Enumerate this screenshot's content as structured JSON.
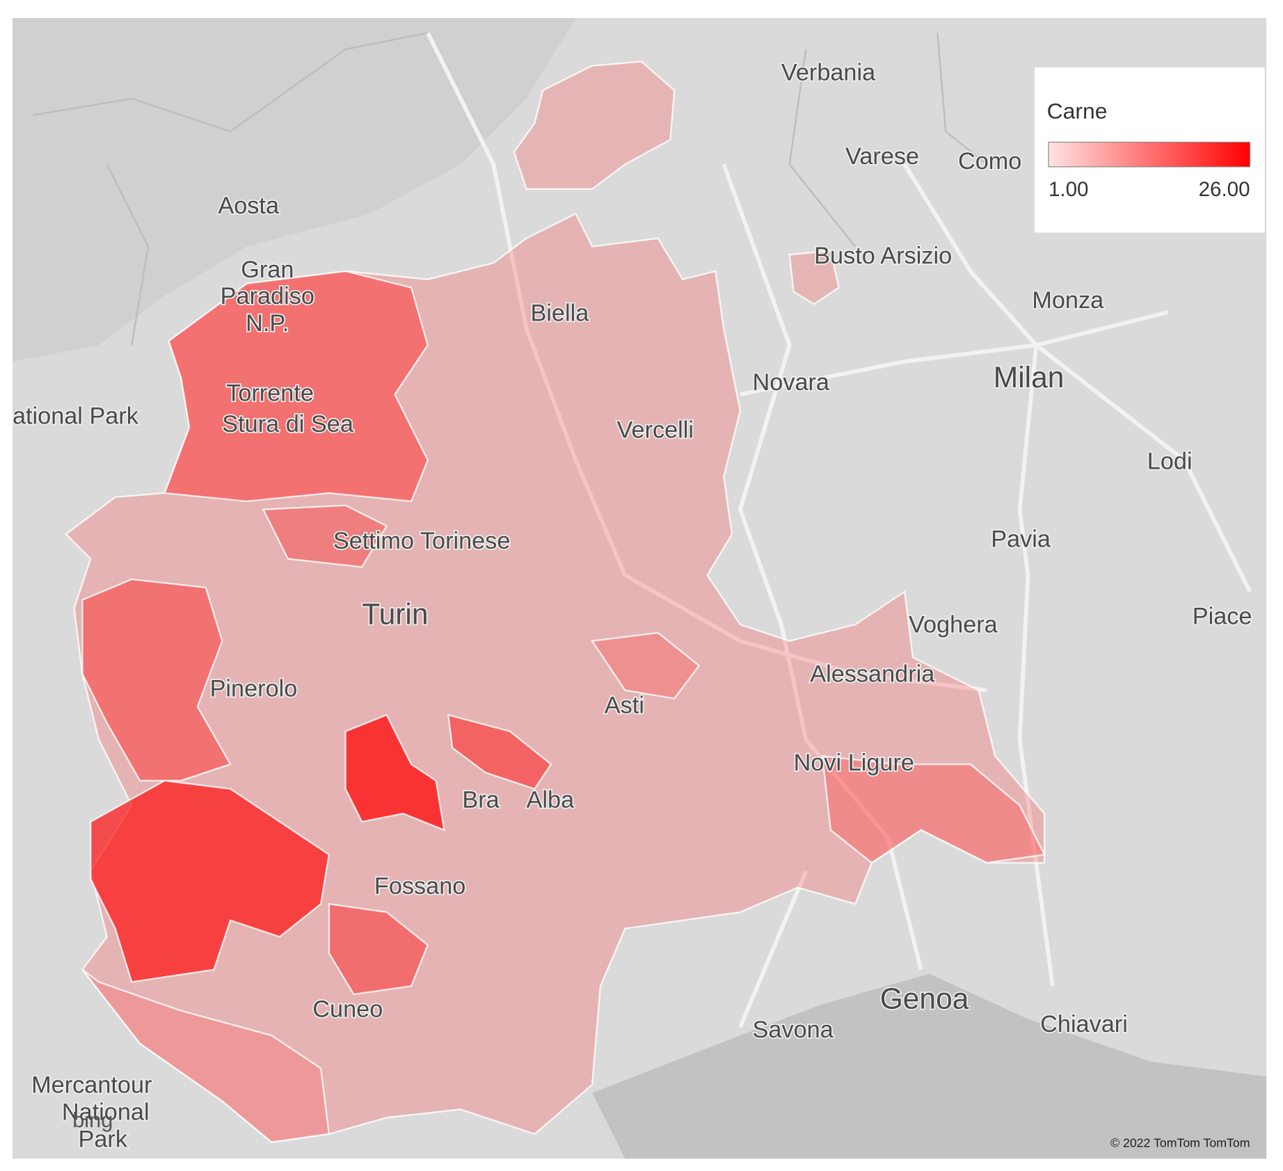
{
  "map": {
    "legend": {
      "title": "Carne",
      "min": {
        "value": 1,
        "label": "1.00"
      },
      "max": {
        "value": 26,
        "label": "26.00"
      },
      "colors": [
        "#ffe3e3",
        "#ff0000"
      ]
    },
    "places": [
      "Verbania",
      "Varese",
      "Como",
      "Aosta",
      "Gran",
      "Paradiso",
      "N.P.",
      "Busto Arsizio",
      "Monza",
      "Biella",
      "Novara",
      "Milan",
      "Torrente",
      "Stura di Sea",
      "ational Park",
      "Vercelli",
      "Lodi",
      "Pavia",
      "Settimo Torinese",
      "Turin",
      "Voghera",
      "Piace",
      "Alessandria",
      "Pinerolo",
      "Asti",
      "Novi Ligure",
      "Bra",
      "Alba",
      "Fossano",
      "Genoa",
      "Cuneo",
      "Savona",
      "Chiavari",
      "Mercantour",
      "National",
      "Park"
    ],
    "logo": "bing",
    "attribution": "© 2022 TomTom TomTom"
  }
}
